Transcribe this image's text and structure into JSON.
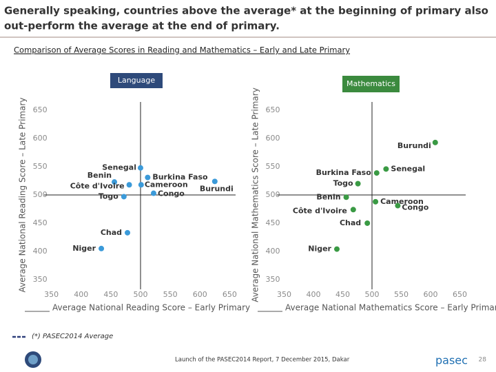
{
  "slide_title": [
    "Generally speaking, countries above the average* at the beginning of primary also",
    "out-perform the average at the end of primary."
  ],
  "subtitle": "Comparison of Average Scores in Reading and Mathematics – Early and Late Primary",
  "chart_data": [
    {
      "type": "scatter",
      "title": "Language",
      "color": "#3b9ad9",
      "xlabel": "Average National Reading Score – Early Primary",
      "ylabel": "Average National Reading Score – Late Primary",
      "labels": [
        "Senegal",
        "Burkina Faso",
        "Benin",
        "Côte d'Ivoire",
        "Cameroon",
        "Togo",
        "Congo",
        "Burundi",
        "Chad",
        "Niger"
      ],
      "x": [
        500,
        512,
        456,
        481,
        501,
        472,
        522,
        625,
        478,
        434
      ],
      "y": [
        548,
        531,
        523,
        518,
        518,
        497,
        503,
        524,
        433,
        405
      ],
      "average": {
        "x": 500,
        "y": 500
      },
      "xlim": [
        340,
        660
      ],
      "ylim": [
        340,
        660
      ],
      "xticks": [
        350,
        400,
        450,
        500,
        550,
        600,
        650
      ],
      "yticks": [
        350,
        400,
        450,
        500,
        550,
        600,
        650
      ]
    },
    {
      "type": "scatter",
      "title": "Mathematics",
      "color": "#3a9a44",
      "xlabel": "Average National Mathematics Score – Early Primary",
      "ylabel": "Average National Mathematics Score – Late Primary",
      "labels": [
        "Burundi",
        "Senegal",
        "Burkina Faso",
        "Togo",
        "Benin",
        "Cameroon",
        "Congo",
        "Côte d'Ivoire",
        "Chad",
        "Niger"
      ],
      "x": [
        608,
        524,
        508,
        476,
        456,
        506,
        544,
        468,
        492,
        440
      ],
      "y": [
        593,
        546,
        539,
        520,
        496,
        488,
        481,
        474,
        450,
        404
      ],
      "average": {
        "x": 500,
        "y": 500
      },
      "xlim": [
        340,
        660
      ],
      "ylim": [
        340,
        660
      ],
      "xticks": [
        350,
        400,
        450,
        500,
        550,
        600,
        650
      ],
      "yticks": [
        350,
        400,
        450,
        500,
        550,
        600,
        650
      ]
    }
  ],
  "footnote": "(*) PASEC2014 Average",
  "footer": "Launch of the PASEC2014 Report, 7 December 2015, Dakar",
  "brand": "pasec",
  "page_number": "28"
}
